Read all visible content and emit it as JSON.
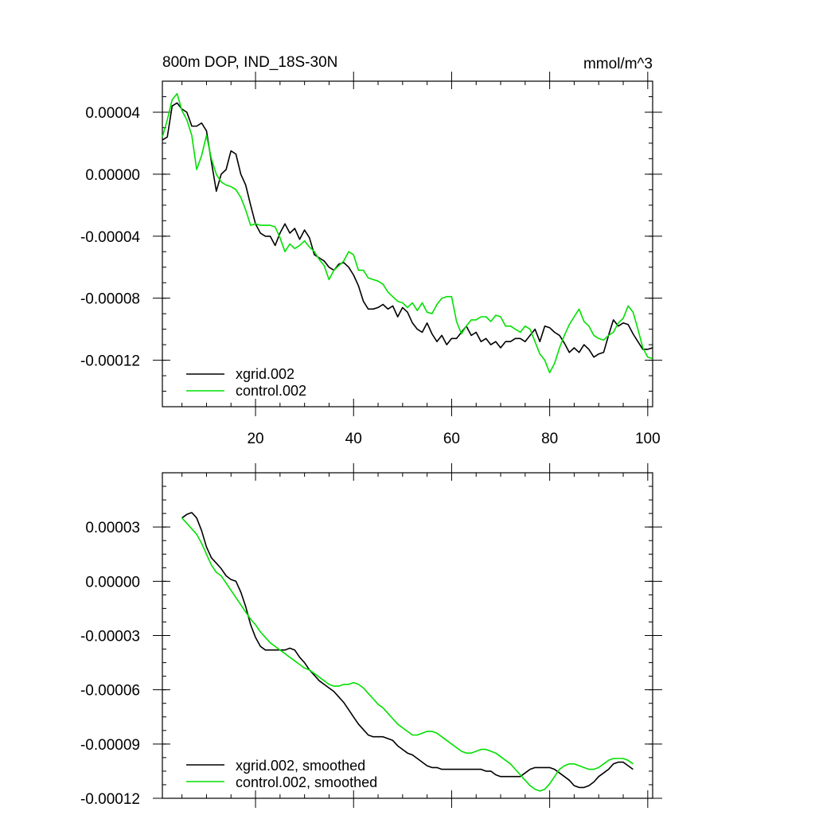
{
  "colors": {
    "xgrid": "#000000",
    "control": "#00e000",
    "frame": "#000000"
  },
  "chart_data": [
    {
      "type": "line",
      "title": "800m DOP, IND_18S-30N",
      "units": "mmol/m^3",
      "xlim": [
        1,
        101
      ],
      "ylim": [
        -0.00015,
        6e-05
      ],
      "x_ticks": [
        20,
        40,
        60,
        80,
        100
      ],
      "x_tick_labels": [
        "20",
        "40",
        "60",
        "80",
        "100"
      ],
      "y_ticks": [
        4e-05,
        0.0,
        -4e-05,
        -8e-05,
        -0.00012
      ],
      "y_tick_labels": [
        "0.00004",
        "0.00000",
        "-0.00004",
        "-0.00008",
        "-0.00012"
      ],
      "legend_position": "bottom-left",
      "series": [
        {
          "name": "xgrid.002",
          "color": "#000000",
          "x": [
            1,
            2,
            3,
            4,
            5,
            6,
            7,
            8,
            9,
            10,
            11,
            12,
            13,
            14,
            15,
            16,
            17,
            18,
            19,
            20,
            21,
            22,
            23,
            24,
            25,
            26,
            27,
            28,
            29,
            30,
            31,
            32,
            33,
            34,
            35,
            36,
            37,
            38,
            39,
            40,
            41,
            42,
            43,
            44,
            45,
            46,
            47,
            48,
            49,
            50,
            51,
            52,
            53,
            54,
            55,
            56,
            57,
            58,
            59,
            60,
            61,
            62,
            63,
            64,
            65,
            66,
            67,
            68,
            69,
            70,
            71,
            72,
            73,
            74,
            75,
            76,
            77,
            78,
            79,
            80,
            81,
            82,
            83,
            84,
            85,
            86,
            87,
            88,
            89,
            90,
            91,
            92,
            93,
            94,
            95,
            96,
            97,
            98,
            99,
            100,
            101
          ],
          "y": [
            2.2e-05,
            2.4e-05,
            4.4e-05,
            4.6e-05,
            4.2e-05,
            4e-05,
            3.1e-05,
            3.1e-05,
            3.3e-05,
            2.8e-05,
            8e-06,
            -1.1e-05,
            0.0,
            3e-06,
            1.5e-05,
            1.3e-05,
            0.0,
            -7e-06,
            -2e-05,
            -3.2e-05,
            -3.8e-05,
            -4e-05,
            -4e-05,
            -4.6e-05,
            -3.8e-05,
            -3.2e-05,
            -3.8e-05,
            -3.5e-05,
            -4.2e-05,
            -3.6e-05,
            -4.1e-05,
            -5.2e-05,
            -5.4e-05,
            -5.6e-05,
            -6e-05,
            -6.2e-05,
            -5.8e-05,
            -5.7e-05,
            -6e-05,
            -6.5e-05,
            -7.2e-05,
            -8.2e-05,
            -8.7e-05,
            -8.7e-05,
            -8.6e-05,
            -8.4e-05,
            -8.7e-05,
            -8.5e-05,
            -9.2e-05,
            -8.6e-05,
            -8.9e-05,
            -9.6e-05,
            -0.0001,
            -0.000102,
            -9.6e-05,
            -0.000103,
            -0.000108,
            -0.000104,
            -0.00011,
            -0.000106,
            -0.000106,
            -0.000102,
            -9.8e-05,
            -0.000104,
            -0.000102,
            -0.000108,
            -0.000106,
            -0.00011,
            -0.000108,
            -0.000112,
            -0.000108,
            -0.000108,
            -0.000106,
            -0.000106,
            -0.000108,
            -0.000104,
            -0.0001,
            -0.000108,
            -9.8e-05,
            -9.9e-05,
            -0.000102,
            -0.000104,
            -0.000109,
            -0.000115,
            -0.000112,
            -0.000115,
            -0.00011,
            -0.000113,
            -0.000118,
            -0.000116,
            -0.000115,
            -0.000104,
            -9.4e-05,
            -9.8e-05,
            -9.6e-05,
            -9.7e-05,
            -0.000103,
            -0.000108,
            -0.000113,
            -0.000113,
            -0.000112
          ]
        },
        {
          "name": "control.002",
          "color": "#00e000",
          "x": [
            1,
            2,
            3,
            4,
            5,
            6,
            7,
            8,
            9,
            10,
            11,
            12,
            13,
            14,
            15,
            16,
            17,
            18,
            19,
            20,
            21,
            22,
            23,
            24,
            25,
            26,
            27,
            28,
            29,
            30,
            31,
            32,
            33,
            34,
            35,
            36,
            37,
            38,
            39,
            40,
            41,
            42,
            43,
            44,
            45,
            46,
            47,
            48,
            49,
            50,
            51,
            52,
            53,
            54,
            55,
            56,
            57,
            58,
            59,
            60,
            61,
            62,
            63,
            64,
            65,
            66,
            67,
            68,
            69,
            70,
            71,
            72,
            73,
            74,
            75,
            76,
            77,
            78,
            79,
            80,
            81,
            82,
            83,
            84,
            85,
            86,
            87,
            88,
            89,
            90,
            91,
            92,
            93,
            94,
            95,
            96,
            97,
            98,
            99,
            100,
            101
          ],
          "y": [
            2.4e-05,
            3.5e-05,
            4.8e-05,
            5.2e-05,
            4.1e-05,
            3.5e-05,
            2.5e-05,
            3e-06,
            1.2e-05,
            2.5e-05,
            1e-05,
            0.0,
            -5e-06,
            -7e-06,
            -8e-06,
            -1e-05,
            -1.5e-05,
            -2.3e-05,
            -3.3e-05,
            -3.2e-05,
            -3.3e-05,
            -3.3e-05,
            -3.3e-05,
            -3.4e-05,
            -4.1e-05,
            -5e-05,
            -4.5e-05,
            -4.8e-05,
            -4.6e-05,
            -4.3e-05,
            -4.7e-05,
            -5e-05,
            -5.5e-05,
            -5.9e-05,
            -6.8e-05,
            -6.2e-05,
            -5.9e-05,
            -5.6e-05,
            -5e-05,
            -5.2e-05,
            -6.2e-05,
            -6.2e-05,
            -6.7e-05,
            -6.8e-05,
            -6.9e-05,
            -7.1e-05,
            -7.6e-05,
            -7.9e-05,
            -8.2e-05,
            -8.3e-05,
            -8.6e-05,
            -8.3e-05,
            -8.8e-05,
            -8.3e-05,
            -8.9e-05,
            -9e-05,
            -8.4e-05,
            -8e-05,
            -7.9e-05,
            -7.9e-05,
            -9.5e-05,
            -0.000103,
            -9.8e-05,
            -9.4e-05,
            -9.4e-05,
            -9.2e-05,
            -9.2e-05,
            -9.5e-05,
            -9.1e-05,
            -9.2e-05,
            -9.8e-05,
            -9.8e-05,
            -0.0001,
            -0.000102,
            -9.8e-05,
            -0.0001,
            -0.000108,
            -0.000116,
            -0.00012,
            -0.000128,
            -0.000122,
            -0.000112,
            -0.000104,
            -9.7e-05,
            -9.2e-05,
            -8.7e-05,
            -9.5e-05,
            -9.8e-05,
            -0.000104,
            -0.000106,
            -0.000107,
            -0.000104,
            -0.000102,
            -9.6e-05,
            -9.3e-05,
            -8.5e-05,
            -8.9e-05,
            -0.0001,
            -0.000112,
            -0.000118,
            -0.000119
          ]
        }
      ]
    },
    {
      "type": "line",
      "xlim": [
        1,
        101
      ],
      "ylim": [
        -0.00012,
        6e-05
      ],
      "x_ticks": [
        20,
        40,
        60,
        80,
        100
      ],
      "y_ticks": [
        3e-05,
        0.0,
        -3e-05,
        -6e-05,
        -9e-05,
        -0.00012
      ],
      "y_tick_labels": [
        "0.00003",
        "0.00000",
        "-0.00003",
        "-0.00006",
        "-0.00009",
        "-0.00012"
      ],
      "legend_position": "bottom-left",
      "series": [
        {
          "name": "xgrid.002, smoothed",
          "color": "#000000",
          "x": [
            5,
            6,
            7,
            8,
            9,
            10,
            11,
            12,
            13,
            14,
            15,
            16,
            17,
            18,
            19,
            20,
            21,
            22,
            23,
            24,
            25,
            26,
            27,
            28,
            29,
            30,
            31,
            32,
            33,
            34,
            35,
            36,
            37,
            38,
            39,
            40,
            41,
            42,
            43,
            44,
            45,
            46,
            47,
            48,
            49,
            50,
            51,
            52,
            53,
            54,
            55,
            56,
            57,
            58,
            59,
            60,
            61,
            62,
            63,
            64,
            65,
            66,
            67,
            68,
            69,
            70,
            71,
            72,
            73,
            74,
            75,
            76,
            77,
            78,
            79,
            80,
            81,
            82,
            83,
            84,
            85,
            86,
            87,
            88,
            89,
            90,
            91,
            92,
            93,
            94,
            95,
            96,
            97
          ],
          "y": [
            3.5e-05,
            3.7e-05,
            3.8e-05,
            3.5e-05,
            2.8e-05,
            1.9e-05,
            1.3e-05,
            1e-05,
            7e-06,
            3e-06,
            1e-06,
            0.0,
            -6e-06,
            -1.4e-05,
            -2.4e-05,
            -3.1e-05,
            -3.6e-05,
            -3.8e-05,
            -3.8e-05,
            -3.8e-05,
            -3.8e-05,
            -3.8e-05,
            -3.7e-05,
            -3.8e-05,
            -4.2e-05,
            -4.5e-05,
            -4.9e-05,
            -5.2e-05,
            -5.5e-05,
            -5.7e-05,
            -5.9e-05,
            -6.1e-05,
            -6.4e-05,
            -6.7e-05,
            -7.1e-05,
            -7.5e-05,
            -7.9e-05,
            -8.2e-05,
            -8.5e-05,
            -8.6e-05,
            -8.6e-05,
            -8.6e-05,
            -8.7e-05,
            -8.8e-05,
            -9.1e-05,
            -9.3e-05,
            -9.5e-05,
            -9.6e-05,
            -9.8e-05,
            -0.0001,
            -0.000102,
            -0.000103,
            -0.000103,
            -0.000104,
            -0.000104,
            -0.000104,
            -0.000104,
            -0.000104,
            -0.000104,
            -0.000104,
            -0.000104,
            -0.000104,
            -0.000105,
            -0.000105,
            -0.000107,
            -0.000108,
            -0.000108,
            -0.000108,
            -0.000108,
            -0.000108,
            -0.000106,
            -0.000104,
            -0.000103,
            -0.000103,
            -0.000103,
            -0.000103,
            -0.000104,
            -0.000106,
            -0.000108,
            -0.00011,
            -0.000113,
            -0.000114,
            -0.000114,
            -0.000113,
            -0.000111,
            -0.000108,
            -0.000106,
            -0.000104,
            -0.000101,
            -0.0001,
            -0.0001,
            -0.000102,
            -0.000104
          ]
        },
        {
          "name": "control.002, smoothed",
          "color": "#00e000",
          "x": [
            5,
            6,
            7,
            8,
            9,
            10,
            11,
            12,
            13,
            14,
            15,
            16,
            17,
            18,
            19,
            20,
            21,
            22,
            23,
            24,
            25,
            26,
            27,
            28,
            29,
            30,
            31,
            32,
            33,
            34,
            35,
            36,
            37,
            38,
            39,
            40,
            41,
            42,
            43,
            44,
            45,
            46,
            47,
            48,
            49,
            50,
            51,
            52,
            53,
            54,
            55,
            56,
            57,
            58,
            59,
            60,
            61,
            62,
            63,
            64,
            65,
            66,
            67,
            68,
            69,
            70,
            71,
            72,
            73,
            74,
            75,
            76,
            77,
            78,
            79,
            80,
            81,
            82,
            83,
            84,
            85,
            86,
            87,
            88,
            89,
            90,
            91,
            92,
            93,
            94,
            95,
            96,
            97
          ],
          "y": [
            3.5e-05,
            3.2e-05,
            2.9e-05,
            2.6e-05,
            2.1e-05,
            1.5e-05,
            9e-06,
            5e-06,
            3e-06,
            -1e-06,
            -5e-06,
            -9e-06,
            -1.3e-05,
            -1.7e-05,
            -2.1e-05,
            -2.4e-05,
            -2.8e-05,
            -3.1e-05,
            -3.4e-05,
            -3.6e-05,
            -3.8e-05,
            -4e-05,
            -4.2e-05,
            -4.4e-05,
            -4.6e-05,
            -4.8e-05,
            -4.9e-05,
            -5.1e-05,
            -5.3e-05,
            -5.5e-05,
            -5.7e-05,
            -5.8e-05,
            -5.8e-05,
            -5.7e-05,
            -5.7e-05,
            -5.6e-05,
            -5.7e-05,
            -5.9e-05,
            -6.2e-05,
            -6.5e-05,
            -6.8e-05,
            -7e-05,
            -7.3e-05,
            -7.6e-05,
            -7.9e-05,
            -8.1e-05,
            -8.3e-05,
            -8.5e-05,
            -8.5e-05,
            -8.4e-05,
            -8.3e-05,
            -8.3e-05,
            -8.4e-05,
            -8.6e-05,
            -8.8e-05,
            -9e-05,
            -9.2e-05,
            -9.4e-05,
            -9.5e-05,
            -9.5e-05,
            -9.4e-05,
            -9.3e-05,
            -9.3e-05,
            -9.4e-05,
            -9.5e-05,
            -9.7e-05,
            -9.9e-05,
            -0.000101,
            -0.000104,
            -0.000107,
            -0.00011,
            -0.000113,
            -0.000115,
            -0.000116,
            -0.000115,
            -0.000112,
            -0.000108,
            -0.000104,
            -0.000102,
            -0.000101,
            -0.000101,
            -0.000102,
            -0.000103,
            -0.000104,
            -0.000104,
            -0.000103,
            -0.000101,
            -9.9e-05,
            -9.8e-05,
            -9.8e-05,
            -9.8e-05,
            -9.9e-05,
            -0.000101
          ]
        }
      ]
    }
  ]
}
